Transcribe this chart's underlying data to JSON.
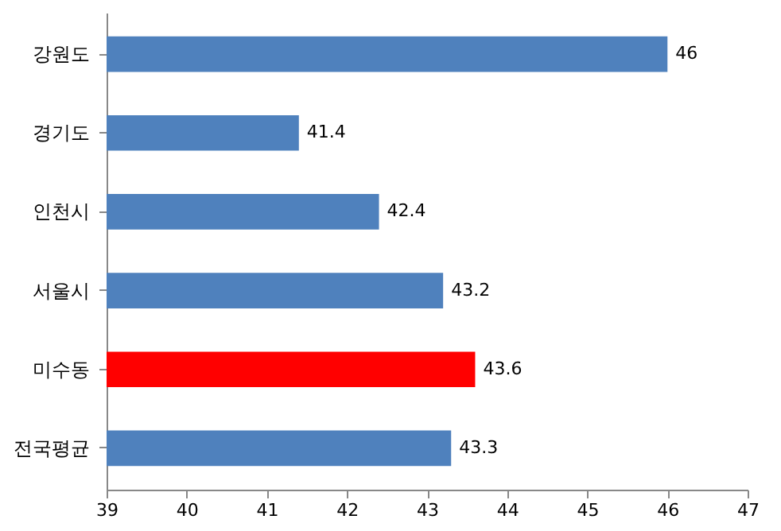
{
  "chart_data": {
    "type": "bar",
    "orientation": "horizontal",
    "categories": [
      "강원도",
      "경기도",
      "인천시",
      "서울시",
      "미수동",
      "전국평균"
    ],
    "values": [
      46,
      41.4,
      42.4,
      43.2,
      43.6,
      43.3
    ],
    "colors": [
      "#4f81bd",
      "#4f81bd",
      "#4f81bd",
      "#4f81bd",
      "#ff0000",
      "#4f81bd"
    ],
    "xlim": [
      39,
      47
    ],
    "xticks": [
      39,
      40,
      41,
      42,
      43,
      44,
      45,
      46,
      47
    ],
    "data_labels": true,
    "grid": false,
    "legend": false
  }
}
